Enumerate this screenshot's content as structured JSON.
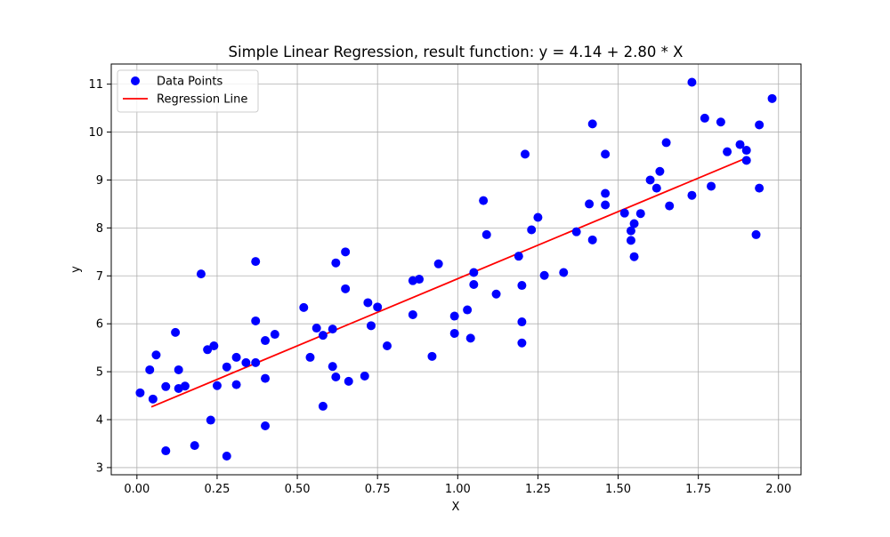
{
  "chart_data": {
    "type": "scatter",
    "title": "Simple Linear Regression, result function: y = 4.14 + 2.80 * X",
    "xlabel": "X",
    "ylabel": "y",
    "xlim": [
      -0.08,
      2.07
    ],
    "ylim": [
      2.85,
      11.42
    ],
    "grid": true,
    "legend_position": "top-left",
    "x_ticks": [
      0.0,
      0.25,
      0.5,
      0.75,
      1.0,
      1.25,
      1.5,
      1.75,
      2.0
    ],
    "x_tick_labels": [
      "0.00",
      "0.25",
      "0.50",
      "0.75",
      "1.00",
      "1.25",
      "1.50",
      "1.75",
      "2.00"
    ],
    "y_ticks": [
      3,
      4,
      5,
      6,
      7,
      8,
      9,
      10,
      11
    ],
    "y_tick_labels": [
      "3",
      "4",
      "5",
      "6",
      "7",
      "8",
      "9",
      "10",
      "11"
    ],
    "series": [
      {
        "name": "Data Points",
        "kind": "scatter",
        "color": "#0000ff",
        "points": [
          [
            0.01,
            4.56
          ],
          [
            0.04,
            5.04
          ],
          [
            0.06,
            5.35
          ],
          [
            0.05,
            4.43
          ],
          [
            0.09,
            4.69
          ],
          [
            0.09,
            3.35
          ],
          [
            0.12,
            5.82
          ],
          [
            0.13,
            5.04
          ],
          [
            0.13,
            4.65
          ],
          [
            0.15,
            4.7
          ],
          [
            0.18,
            3.46
          ],
          [
            0.2,
            7.04
          ],
          [
            0.22,
            5.46
          ],
          [
            0.24,
            5.54
          ],
          [
            0.23,
            3.99
          ],
          [
            0.25,
            4.71
          ],
          [
            0.28,
            5.1
          ],
          [
            0.28,
            3.24
          ],
          [
            0.31,
            5.3
          ],
          [
            0.31,
            4.73
          ],
          [
            0.34,
            5.19
          ],
          [
            0.37,
            5.19
          ],
          [
            0.37,
            6.06
          ],
          [
            0.37,
            7.3
          ],
          [
            0.4,
            5.65
          ],
          [
            0.4,
            4.86
          ],
          [
            0.4,
            3.87
          ],
          [
            0.43,
            5.78
          ],
          [
            0.52,
            6.34
          ],
          [
            0.54,
            5.3
          ],
          [
            0.56,
            5.91
          ],
          [
            0.58,
            5.76
          ],
          [
            0.58,
            4.28
          ],
          [
            0.61,
            5.89
          ],
          [
            0.61,
            5.11
          ],
          [
            0.62,
            7.27
          ],
          [
            0.62,
            4.89
          ],
          [
            0.65,
            7.5
          ],
          [
            0.65,
            6.73
          ],
          [
            0.66,
            4.8
          ],
          [
            0.71,
            4.91
          ],
          [
            0.72,
            6.44
          ],
          [
            0.73,
            5.96
          ],
          [
            0.75,
            6.35
          ],
          [
            0.78,
            5.54
          ],
          [
            0.86,
            6.9
          ],
          [
            0.86,
            6.19
          ],
          [
            0.88,
            6.93
          ],
          [
            0.92,
            5.32
          ],
          [
            0.94,
            7.25
          ],
          [
            0.99,
            6.16
          ],
          [
            0.99,
            5.8
          ],
          [
            1.03,
            6.29
          ],
          [
            1.04,
            5.7
          ],
          [
            1.05,
            7.07
          ],
          [
            1.05,
            6.82
          ],
          [
            1.08,
            8.57
          ],
          [
            1.09,
            7.86
          ],
          [
            1.12,
            6.62
          ],
          [
            1.19,
            7.41
          ],
          [
            1.2,
            6.04
          ],
          [
            1.2,
            5.6
          ],
          [
            1.2,
            6.8
          ],
          [
            1.21,
            9.54
          ],
          [
            1.23,
            7.96
          ],
          [
            1.25,
            8.22
          ],
          [
            1.27,
            7.01
          ],
          [
            1.33,
            7.07
          ],
          [
            1.37,
            7.92
          ],
          [
            1.41,
            8.5
          ],
          [
            1.42,
            10.17
          ],
          [
            1.42,
            7.75
          ],
          [
            1.46,
            9.54
          ],
          [
            1.46,
            8.72
          ],
          [
            1.46,
            8.48
          ],
          [
            1.52,
            8.31
          ],
          [
            1.54,
            7.94
          ],
          [
            1.54,
            7.74
          ],
          [
            1.55,
            8.09
          ],
          [
            1.55,
            7.4
          ],
          [
            1.57,
            8.3
          ],
          [
            1.6,
            9.0
          ],
          [
            1.62,
            8.83
          ],
          [
            1.63,
            9.18
          ],
          [
            1.65,
            9.78
          ],
          [
            1.66,
            8.46
          ],
          [
            1.73,
            11.04
          ],
          [
            1.73,
            8.68
          ],
          [
            1.77,
            10.29
          ],
          [
            1.79,
            8.87
          ],
          [
            1.82,
            10.21
          ],
          [
            1.84,
            9.59
          ],
          [
            1.88,
            9.74
          ],
          [
            1.9,
            9.62
          ],
          [
            1.9,
            9.41
          ],
          [
            1.93,
            7.86
          ],
          [
            1.94,
            8.83
          ],
          [
            1.94,
            10.15
          ],
          [
            1.98,
            10.7
          ]
        ]
      },
      {
        "name": "Regression Line",
        "kind": "line",
        "color": "#ff0000",
        "points": [
          [
            0.045,
            4.266
          ],
          [
            1.895,
            9.446
          ]
        ]
      }
    ]
  }
}
